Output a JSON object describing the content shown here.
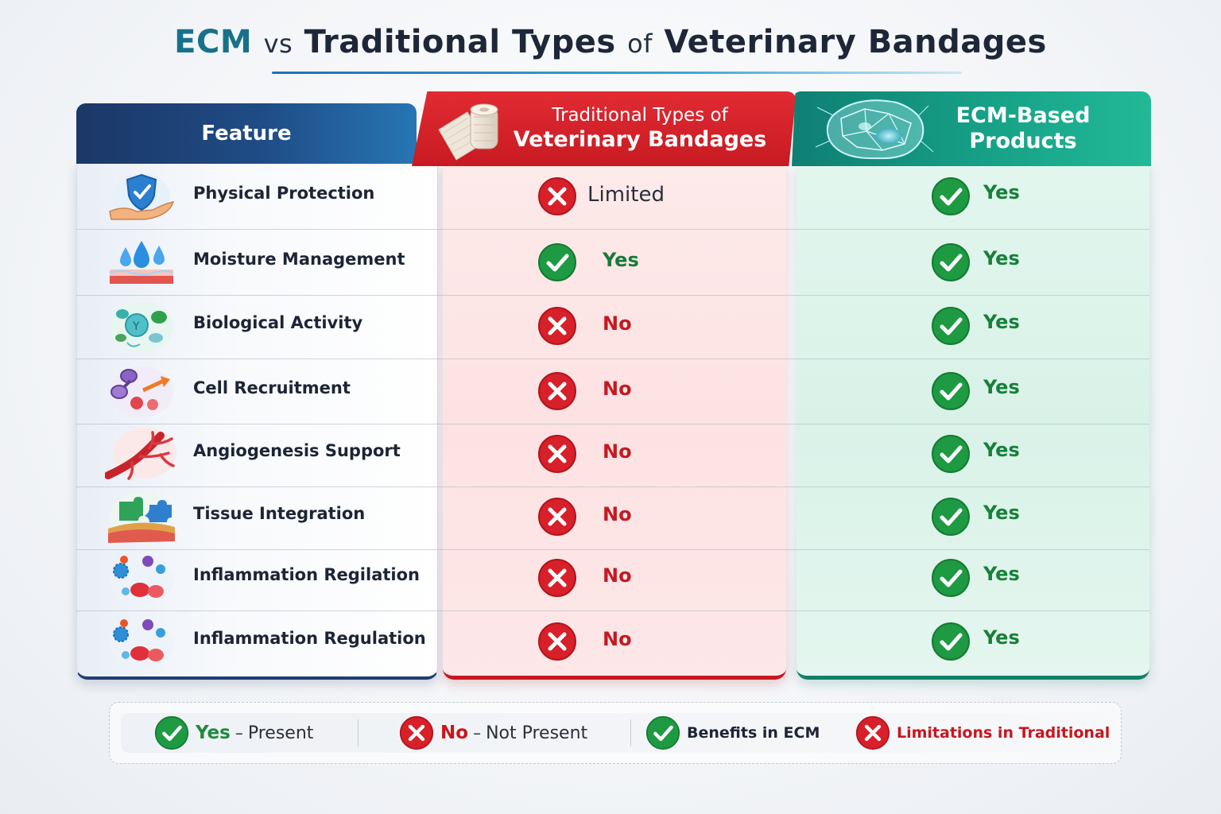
{
  "title": {
    "ecm": "ECM",
    "vs": "vs",
    "traditional_types": "Traditional Types",
    "of": "of",
    "rest": "Veterinary Bandages"
  },
  "headers": {
    "feature": "Feature",
    "traditional_line1": "Traditional Types of",
    "traditional_line2": "Veterinary Bandages",
    "ecm_line1": "ECM-Based",
    "ecm_line2": "Products"
  },
  "rows": [
    {
      "feature": "Physical Protection",
      "icon": "shield-hand-icon",
      "traditional_mark": "cross",
      "traditional": "Limited",
      "ecm_mark": "check",
      "ecm": "Yes"
    },
    {
      "feature": "Moisture Management",
      "icon": "water-drops-icon",
      "traditional_mark": "check",
      "traditional": "Yes",
      "ecm_mark": "check",
      "ecm": "Yes"
    },
    {
      "feature": "Biological Activity",
      "icon": "cells-icon",
      "traditional_mark": "cross",
      "traditional": "No",
      "ecm_mark": "check",
      "ecm": "Yes"
    },
    {
      "feature": "Cell Recruitment",
      "icon": "cell-migration-icon",
      "traditional_mark": "cross",
      "traditional": "No",
      "ecm_mark": "check",
      "ecm": "Yes"
    },
    {
      "feature": "Angiogenesis Support",
      "icon": "blood-vessel-icon",
      "traditional_mark": "cross",
      "traditional": "No",
      "ecm_mark": "check",
      "ecm": "Yes"
    },
    {
      "feature": "Tissue Integration",
      "icon": "puzzle-tissue-icon",
      "traditional_mark": "cross",
      "traditional": "No",
      "ecm_mark": "check",
      "ecm": "Yes"
    },
    {
      "feature": "Inflammation Regilation",
      "icon": "immune-cells-icon",
      "traditional_mark": "cross",
      "traditional": "No",
      "ecm_mark": "check",
      "ecm": "Yes"
    },
    {
      "feature": "Inflammation Regulation",
      "icon": "immune-cells-icon",
      "traditional_mark": "cross",
      "traditional": "No",
      "ecm_mark": "check",
      "ecm": "Yes"
    }
  ],
  "legend": {
    "yes": "Yes",
    "yes_desc": "Present",
    "no": "No",
    "no_desc": "Not Present",
    "dash": "–",
    "benefits": "Benefits in ECM",
    "limitations": "Limitations in Traditional"
  },
  "colors": {
    "feature_header": "#1f4c86",
    "traditional_header": "#d1232a",
    "ecm_header": "#17a489",
    "check_green": "#1e9a42",
    "cross_red": "#d8202a"
  }
}
